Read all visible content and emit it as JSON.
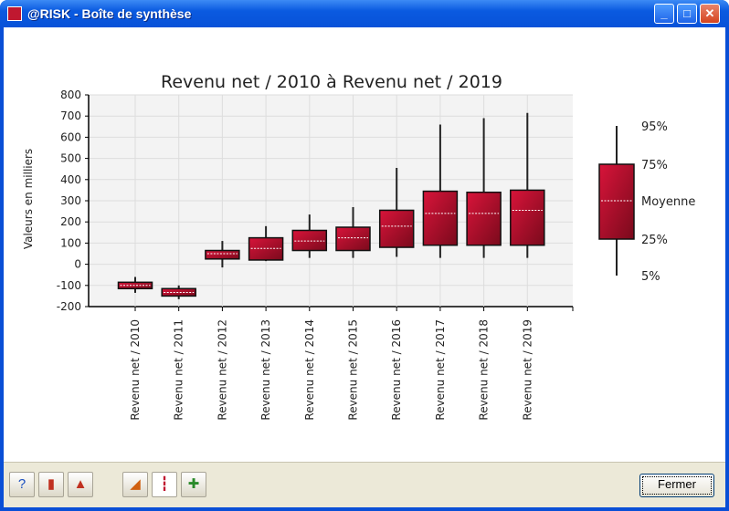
{
  "window": {
    "title": "@RISK - Boîte de synthèse",
    "minimize": "_",
    "maximize": "□",
    "close": "✕"
  },
  "chart_data": {
    "type": "box",
    "title": "Revenu net / 2010 à Revenu net / 2019",
    "ylabel": "Valeurs en milliers",
    "ylim": [
      -200,
      800
    ],
    "yticks": [
      -200,
      -100,
      0,
      100,
      200,
      300,
      400,
      500,
      600,
      700,
      800
    ],
    "grid": true,
    "categories": [
      "Revenu net / 2010",
      "Revenu net / 2011",
      "Revenu net / 2012",
      "Revenu net / 2013",
      "Revenu net / 2014",
      "Revenu net / 2015",
      "Revenu net / 2016",
      "Revenu net / 2017",
      "Revenu net / 2018",
      "Revenu net / 2019"
    ],
    "series": [
      {
        "p5": -135,
        "p25": -115,
        "mean": -100,
        "p75": -85,
        "p95": -60
      },
      {
        "p5": -165,
        "p25": -150,
        "mean": -133,
        "p75": -115,
        "p95": -100
      },
      {
        "p5": -15,
        "p25": 25,
        "mean": 50,
        "p75": 65,
        "p95": 110
      },
      {
        "p5": 15,
        "p25": 20,
        "mean": 75,
        "p75": 125,
        "p95": 180
      },
      {
        "p5": 30,
        "p25": 65,
        "mean": 110,
        "p75": 160,
        "p95": 235
      },
      {
        "p5": 30,
        "p25": 65,
        "mean": 125,
        "p75": 175,
        "p95": 270
      },
      {
        "p5": 35,
        "p25": 80,
        "mean": 180,
        "p75": 255,
        "p95": 455
      },
      {
        "p5": 30,
        "p25": 90,
        "mean": 240,
        "p75": 345,
        "p95": 660
      },
      {
        "p5": 30,
        "p25": 90,
        "mean": 240,
        "p75": 340,
        "p95": 690
      },
      {
        "p5": 30,
        "p25": 90,
        "mean": 255,
        "p75": 350,
        "p95": 715
      }
    ],
    "legend": {
      "placement": "right",
      "labels": [
        "95%",
        "75%",
        "Moyenne",
        "25%",
        "5%"
      ]
    },
    "box_color": "#b0102c"
  },
  "toolbar": {
    "icons": [
      "help-icon",
      "chart-type-icon",
      "report-icon",
      "cumulative-icon",
      "box-plot-icon",
      "copy-icon"
    ],
    "close_label": "Fermer"
  }
}
